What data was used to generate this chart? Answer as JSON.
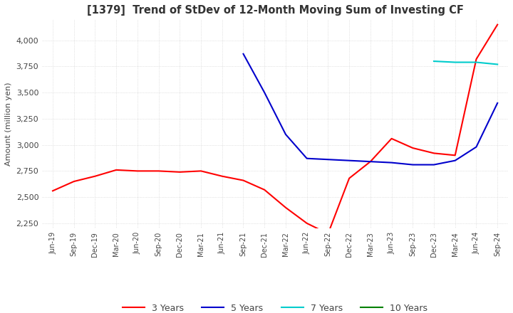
{
  "title": "[1379]  Trend of StDev of 12-Month Moving Sum of Investing CF",
  "ylabel": "Amount (million yen)",
  "line_colors": {
    "3 Years": "#ff0000",
    "5 Years": "#0000cc",
    "7 Years": "#00cccc",
    "10 Years": "#008000"
  },
  "x_labels": [
    "Jun-19",
    "Sep-19",
    "Dec-19",
    "Mar-20",
    "Jun-20",
    "Sep-20",
    "Dec-20",
    "Mar-21",
    "Jun-21",
    "Sep-21",
    "Dec-21",
    "Mar-22",
    "Jun-22",
    "Sep-22",
    "Dec-22",
    "Mar-23",
    "Jun-23",
    "Sep-23",
    "Dec-23",
    "Mar-24",
    "Jun-24",
    "Sep-24"
  ],
  "ylim": [
    2200,
    4200
  ],
  "yticks": [
    2250,
    2500,
    2750,
    3000,
    3250,
    3500,
    3750,
    4000
  ],
  "series_3y": [
    2560,
    2650,
    2700,
    2760,
    2750,
    2750,
    2740,
    2750,
    2700,
    2660,
    2570,
    2400,
    2250,
    2150,
    2680,
    2840,
    3060,
    2970,
    2920,
    2900,
    3820,
    4150
  ],
  "series_5y_indices": [
    9,
    10,
    11,
    12,
    13,
    14,
    15,
    16,
    17,
    18,
    19,
    20,
    21
  ],
  "series_5y_values": [
    3870,
    3500,
    3100,
    2870,
    2860,
    2850,
    2840,
    2830,
    2810,
    2810,
    2850,
    2980,
    3400
  ],
  "series_7y_indices": [
    18,
    19,
    20,
    21
  ],
  "series_7y_values": [
    3800,
    3790,
    3790,
    3770
  ],
  "figsize": [
    7.2,
    4.4
  ],
  "dpi": 100
}
